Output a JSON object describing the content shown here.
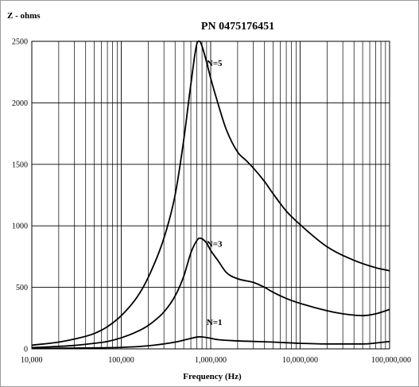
{
  "chart_data": {
    "type": "line",
    "title": "PN 0475176451",
    "xlabel": "Frequency (Hz)",
    "ylabel": "Z - ohms",
    "x_scale": "log",
    "xlim": [
      10000,
      100000000
    ],
    "ylim": [
      0,
      2500
    ],
    "x_ticks": [
      {
        "value": 10000,
        "label": "10,000"
      },
      {
        "value": 100000,
        "label": "100,000"
      },
      {
        "value": 1000000,
        "label": "1,000,000"
      },
      {
        "value": 10000000,
        "label": "10,000,000"
      },
      {
        "value": 100000000,
        "label": "100,000,000"
      }
    ],
    "y_ticks": [
      {
        "value": 0,
        "label": "0"
      },
      {
        "value": 500,
        "label": "500"
      },
      {
        "value": 1000,
        "label": "1000"
      },
      {
        "value": 1500,
        "label": "1500"
      },
      {
        "value": 2000,
        "label": "2000"
      },
      {
        "value": 2500,
        "label": "2500"
      }
    ],
    "grid": true,
    "legend": "none",
    "line_color": "#000000",
    "series": [
      {
        "name": "N=5",
        "label_at": [
          900000,
          2300
        ],
        "points": [
          [
            10000,
            30
          ],
          [
            20000,
            55
          ],
          [
            30000,
            80
          ],
          [
            50000,
            125
          ],
          [
            70000,
            180
          ],
          [
            100000,
            270
          ],
          [
            150000,
            420
          ],
          [
            200000,
            580
          ],
          [
            300000,
            900
          ],
          [
            400000,
            1250
          ],
          [
            500000,
            1700
          ],
          [
            600000,
            2150
          ],
          [
            700000,
            2480
          ],
          [
            750000,
            2500
          ],
          [
            800000,
            2460
          ],
          [
            900000,
            2330
          ],
          [
            1000000,
            2200
          ],
          [
            1200000,
            2000
          ],
          [
            1500000,
            1780
          ],
          [
            2000000,
            1600
          ],
          [
            2500000,
            1530
          ],
          [
            3000000,
            1470
          ],
          [
            4000000,
            1360
          ],
          [
            5000000,
            1260
          ],
          [
            7000000,
            1120
          ],
          [
            10000000,
            1010
          ],
          [
            20000000,
            830
          ],
          [
            40000000,
            720
          ],
          [
            70000000,
            660
          ],
          [
            100000000,
            635
          ]
        ]
      },
      {
        "name": "N=3",
        "label_at": [
          900000,
          830
        ],
        "points": [
          [
            10000,
            10
          ],
          [
            20000,
            20
          ],
          [
            30000,
            28
          ],
          [
            50000,
            45
          ],
          [
            70000,
            60
          ],
          [
            100000,
            90
          ],
          [
            150000,
            140
          ],
          [
            200000,
            190
          ],
          [
            300000,
            300
          ],
          [
            400000,
            430
          ],
          [
            500000,
            590
          ],
          [
            600000,
            780
          ],
          [
            700000,
            880
          ],
          [
            750000,
            900
          ],
          [
            800000,
            895
          ],
          [
            900000,
            860
          ],
          [
            1000000,
            800
          ],
          [
            1200000,
            720
          ],
          [
            1500000,
            620
          ],
          [
            2000000,
            570
          ],
          [
            3000000,
            540
          ],
          [
            4000000,
            500
          ],
          [
            5000000,
            460
          ],
          [
            7000000,
            410
          ],
          [
            10000000,
            370
          ],
          [
            20000000,
            310
          ],
          [
            30000000,
            285
          ],
          [
            50000000,
            270
          ],
          [
            70000000,
            285
          ],
          [
            100000000,
            320
          ]
        ]
      },
      {
        "name": "N=1",
        "label_at": [
          900000,
          195
        ],
        "points": [
          [
            10000,
            3
          ],
          [
            50000,
            8
          ],
          [
            100000,
            12
          ],
          [
            200000,
            25
          ],
          [
            400000,
            55
          ],
          [
            600000,
            85
          ],
          [
            750000,
            98
          ],
          [
            900000,
            92
          ],
          [
            1200000,
            75
          ],
          [
            2000000,
            65
          ],
          [
            5000000,
            55
          ],
          [
            10000000,
            45
          ],
          [
            20000000,
            40
          ],
          [
            50000000,
            40
          ],
          [
            100000000,
            60
          ]
        ]
      }
    ]
  }
}
